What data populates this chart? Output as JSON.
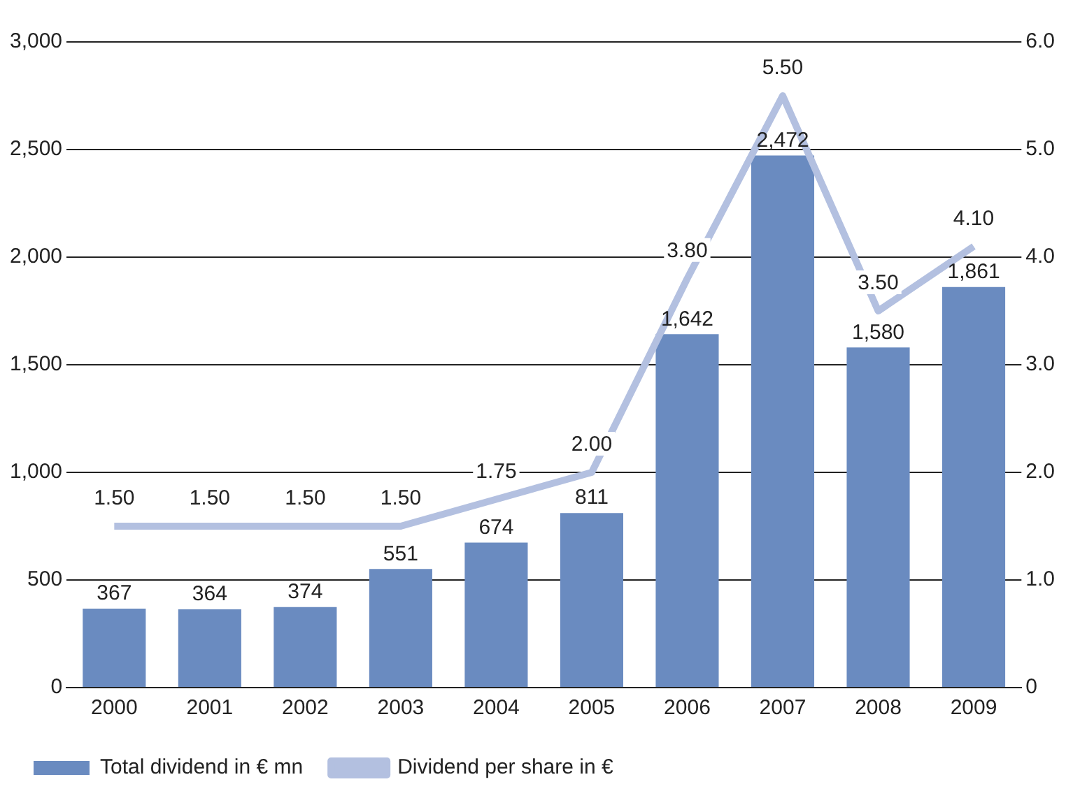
{
  "chart_data": {
    "type": "bar",
    "categories": [
      "2000",
      "2001",
      "2002",
      "2003",
      "2004",
      "2005",
      "2006",
      "2007",
      "2008",
      "2009"
    ],
    "series": [
      {
        "name": "Total dividend in € mn",
        "color": "#6a8bc0",
        "values": [
          367,
          364,
          374,
          551,
          674,
          811,
          1642,
          2472,
          1580,
          1861
        ],
        "value_labels": [
          "367",
          "364",
          "374",
          "551",
          "674",
          "811",
          "1,642",
          "2,472",
          "1,580",
          "1,861"
        ]
      },
      {
        "name": "Dividend per share in €",
        "type": "line",
        "axis": "y2",
        "color": "#b3c0e0",
        "values": [
          1.5,
          1.5,
          1.5,
          1.5,
          1.75,
          2.0,
          3.8,
          5.5,
          3.5,
          4.1
        ],
        "value_labels": [
          "1.50",
          "1.50",
          "1.50",
          "1.50",
          "1.75",
          "2.00",
          "3.80",
          "5.50",
          "3.50",
          "4.10"
        ]
      }
    ],
    "ylim": [
      0,
      3000
    ],
    "yticks": [
      0,
      {
        "value": 500,
        "label": "500"
      },
      {
        "value": 1000,
        "label": "1,000"
      },
      {
        "value": 1500,
        "label": "1,500"
      },
      {
        "value": 2000,
        "label": "2,000"
      },
      {
        "value": 2500,
        "label": "2,500"
      },
      {
        "value": 3000,
        "label": "3,000"
      }
    ],
    "y2lim": [
      0,
      6
    ],
    "y2ticks": [
      0,
      {
        "value": 1,
        "label": "1.0"
      },
      {
        "value": 2,
        "label": "2.0"
      },
      {
        "value": 3,
        "label": "3.0"
      },
      {
        "value": 4,
        "label": "4.0"
      },
      {
        "value": 5,
        "label": "5.0"
      },
      {
        "value": 6,
        "label": "6.0"
      }
    ],
    "grid": "y",
    "legend": "bottom left",
    "marker": "none",
    "line_style": "solid"
  }
}
